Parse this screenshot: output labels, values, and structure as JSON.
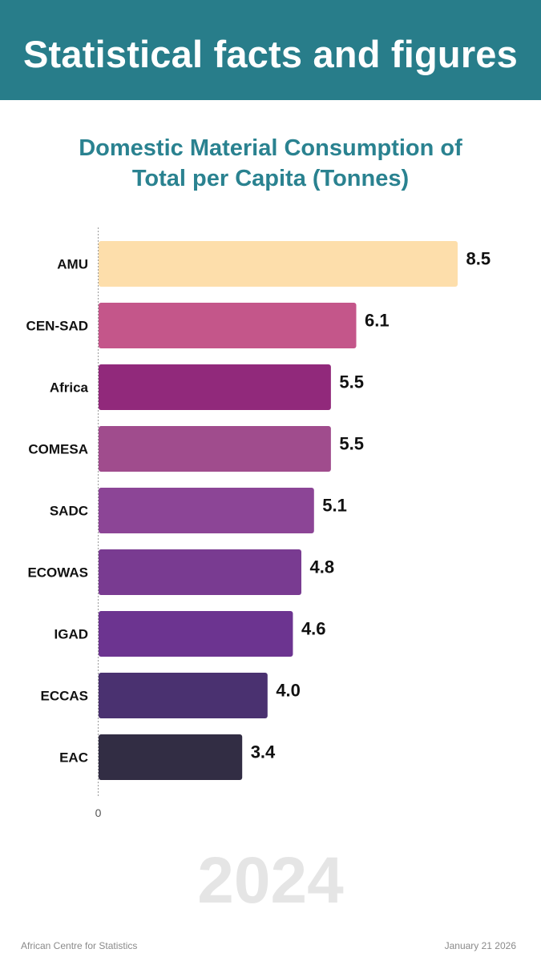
{
  "header": {
    "title": "Statistical facts and figures",
    "background_color": "#287d8a"
  },
  "chart_data": {
    "type": "bar",
    "orientation": "horizontal",
    "title_line1": "Domestic Material Consumption of",
    "title_line2": "Total per Capita (Tonnes)",
    "categories": [
      "AMU",
      "CEN-SAD",
      "Africa",
      "COMESA",
      "SADC",
      "ECOWAS",
      "IGAD",
      "ECCAS",
      "EAC"
    ],
    "values": [
      8.5,
      6.1,
      5.5,
      5.5,
      5.1,
      4.8,
      4.6,
      4.0,
      3.4
    ],
    "value_labels": [
      "8.5",
      "6.1",
      "5.5",
      "5.5",
      "5.1",
      "4.8",
      "4.6",
      "4.0",
      "3.4"
    ],
    "colors": [
      "#fddeab",
      "#c4568a",
      "#91297b",
      "#a04c8d",
      "#8c4596",
      "#793b91",
      "#6c3490",
      "#4a3170",
      "#322d44"
    ],
    "x_tick_label": "0",
    "xlim": [
      0,
      8.5
    ]
  },
  "watermark": "2024",
  "footer": {
    "source": "African Centre for Statistics",
    "date": "January 21 2026"
  }
}
